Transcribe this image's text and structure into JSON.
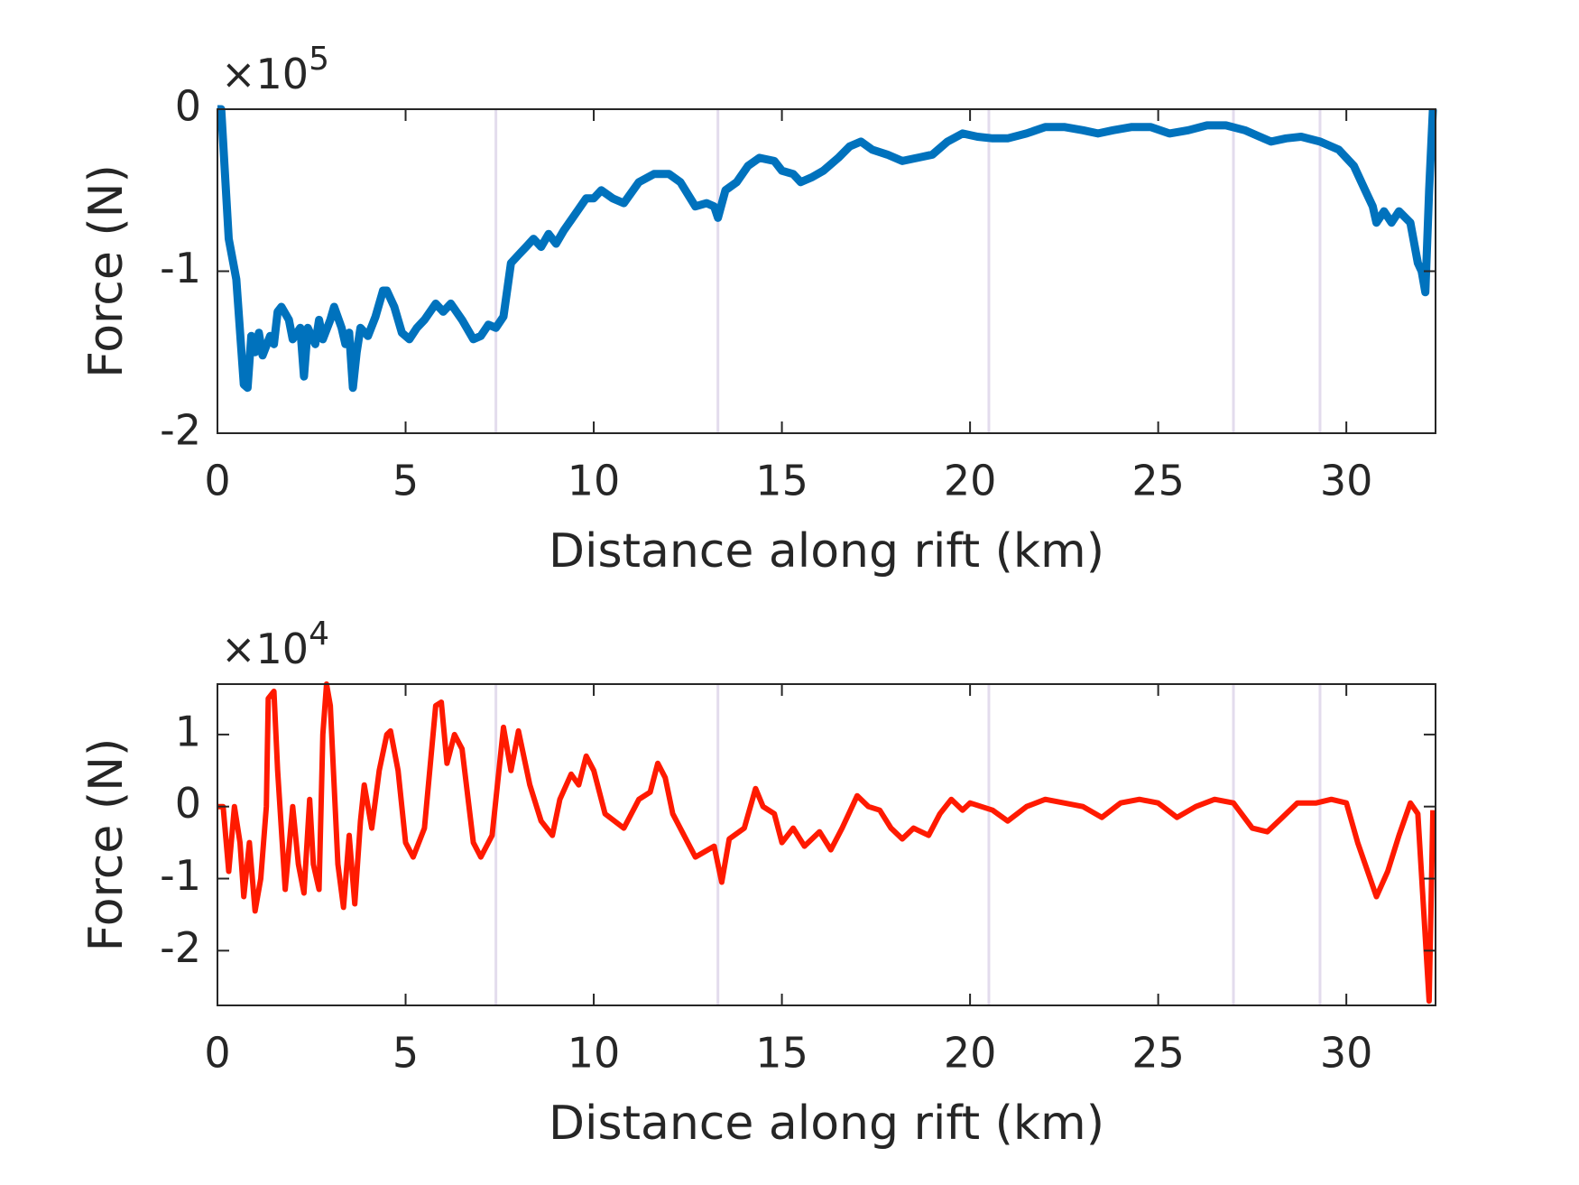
{
  "chart_data": [
    {
      "type": "line",
      "xlabel": "Distance along rift (km)",
      "ylabel": "Force (N)",
      "y_multiplier": "×10",
      "y_multiplier_exponent": "5",
      "xlim": [
        0,
        32.37
      ],
      "ylim": [
        -2,
        0
      ],
      "xticks": [
        0,
        5,
        10,
        15,
        20,
        25,
        30
      ],
      "yticks": [
        -2,
        -1,
        0
      ],
      "reference_lines": {
        "x": [
          7.4,
          13.3,
          20.5,
          27.0,
          29.3
        ],
        "color": "#e3dced"
      },
      "x": [
        0,
        0.1,
        0.3,
        0.5,
        0.7,
        0.8,
        0.9,
        1.0,
        1.1,
        1.2,
        1.4,
        1.5,
        1.6,
        1.7,
        1.9,
        2.0,
        2.2,
        2.3,
        2.4,
        2.6,
        2.7,
        2.8,
        3.0,
        3.1,
        3.3,
        3.4,
        3.5,
        3.6,
        3.7,
        3.8,
        4.0,
        4.2,
        4.4,
        4.5,
        4.7,
        4.9,
        5.1,
        5.3,
        5.5,
        5.8,
        6.0,
        6.2,
        6.5,
        6.8,
        7.0,
        7.2,
        7.4,
        7.6,
        7.8,
        8.0,
        8.2,
        8.4,
        8.6,
        8.8,
        9.0,
        9.2,
        9.5,
        9.8,
        10.0,
        10.2,
        10.5,
        10.8,
        11.2,
        11.6,
        12.0,
        12.3,
        12.7,
        13.0,
        13.2,
        13.3,
        13.5,
        13.8,
        14.1,
        14.4,
        14.8,
        15.0,
        15.3,
        15.5,
        15.8,
        16.1,
        16.5,
        16.8,
        17.1,
        17.4,
        17.8,
        18.2,
        18.6,
        19.0,
        19.4,
        19.8,
        20.2,
        20.6,
        21.0,
        21.5,
        22.0,
        22.5,
        23.0,
        23.4,
        23.8,
        24.3,
        24.8,
        25.3,
        25.8,
        26.3,
        26.8,
        27.3,
        27.7,
        28.0,
        28.4,
        28.8,
        29.3,
        29.8,
        30.2,
        30.5,
        30.7,
        30.8,
        31.0,
        31.2,
        31.4,
        31.7,
        31.9,
        32.0,
        32.1,
        32.2,
        32.3
      ],
      "series": [
        {
          "color": "#0072bd",
          "width": 9,
          "values": [
            0,
            0,
            -0.8,
            -1.05,
            -1.7,
            -1.72,
            -1.4,
            -1.5,
            -1.38,
            -1.52,
            -1.4,
            -1.45,
            -1.25,
            -1.22,
            -1.3,
            -1.42,
            -1.35,
            -1.65,
            -1.35,
            -1.45,
            -1.3,
            -1.42,
            -1.3,
            -1.22,
            -1.35,
            -1.45,
            -1.38,
            -1.72,
            -1.5,
            -1.35,
            -1.4,
            -1.28,
            -1.12,
            -1.12,
            -1.22,
            -1.38,
            -1.42,
            -1.35,
            -1.3,
            -1.2,
            -1.25,
            -1.2,
            -1.3,
            -1.42,
            -1.4,
            -1.33,
            -1.35,
            -1.28,
            -0.95,
            -0.9,
            -0.85,
            -0.8,
            -0.85,
            -0.77,
            -0.83,
            -0.75,
            -0.65,
            -0.55,
            -0.55,
            -0.5,
            -0.55,
            -0.58,
            -0.45,
            -0.4,
            -0.4,
            -0.45,
            -0.6,
            -0.58,
            -0.6,
            -0.67,
            -0.5,
            -0.45,
            -0.35,
            -0.3,
            -0.32,
            -0.38,
            -0.4,
            -0.45,
            -0.42,
            -0.38,
            -0.3,
            -0.23,
            -0.2,
            -0.25,
            -0.28,
            -0.32,
            -0.3,
            -0.28,
            -0.2,
            -0.15,
            -0.17,
            -0.18,
            -0.18,
            -0.15,
            -0.11,
            -0.11,
            -0.13,
            -0.15,
            -0.13,
            -0.11,
            -0.11,
            -0.15,
            -0.13,
            -0.1,
            -0.1,
            -0.13,
            -0.17,
            -0.2,
            -0.18,
            -0.17,
            -0.2,
            -0.25,
            -0.35,
            -0.5,
            -0.6,
            -0.7,
            -0.63,
            -0.7,
            -0.63,
            -0.7,
            -0.95,
            -1.0,
            -1.13,
            -0.5,
            0
          ]
        }
      ]
    },
    {
      "type": "line",
      "xlabel": "Distance along rift (km)",
      "ylabel": "Force (N)",
      "y_multiplier": "×10",
      "y_multiplier_exponent": "4",
      "xlim": [
        0,
        32.37
      ],
      "ylim": [
        -2.76,
        1.7
      ],
      "xticks": [
        0,
        5,
        10,
        15,
        20,
        25,
        30
      ],
      "yticks": [
        -2,
        -1,
        0,
        1
      ],
      "reference_lines": {
        "x": [
          7.4,
          13.3,
          20.5,
          27.0,
          29.3
        ],
        "color": "#e3dced"
      },
      "x": [
        0,
        0.15,
        0.3,
        0.45,
        0.6,
        0.7,
        0.85,
        1.0,
        1.15,
        1.3,
        1.35,
        1.5,
        1.6,
        1.8,
        2.0,
        2.15,
        2.3,
        2.45,
        2.55,
        2.7,
        2.8,
        2.9,
        3.0,
        3.2,
        3.35,
        3.5,
        3.65,
        3.8,
        3.9,
        4.1,
        4.3,
        4.5,
        4.6,
        4.8,
        5.0,
        5.2,
        5.5,
        5.8,
        5.95,
        6.1,
        6.3,
        6.5,
        6.8,
        7.0,
        7.3,
        7.6,
        7.8,
        8.0,
        8.3,
        8.6,
        8.9,
        9.1,
        9.4,
        9.6,
        9.8,
        10.0,
        10.3,
        10.8,
        11.2,
        11.5,
        11.7,
        11.9,
        12.1,
        12.5,
        12.7,
        13.2,
        13.4,
        13.6,
        14.0,
        14.3,
        14.5,
        14.8,
        15.0,
        15.3,
        15.6,
        16.0,
        16.3,
        16.6,
        17.0,
        17.3,
        17.6,
        17.9,
        18.2,
        18.5,
        18.9,
        19.2,
        19.5,
        19.8,
        20.0,
        20.3,
        20.6,
        21.0,
        21.5,
        22.0,
        22.5,
        23.0,
        23.5,
        24.0,
        24.5,
        25.0,
        25.5,
        26.0,
        26.5,
        27.0,
        27.5,
        27.9,
        28.3,
        28.7,
        29.2,
        29.6,
        30.0,
        30.3,
        30.8,
        31.1,
        31.4,
        31.7,
        31.9,
        32.2,
        32.3
      ],
      "series": [
        {
          "color": "#ff1a00",
          "width": 6,
          "values": [
            0,
            0,
            -0.9,
            0,
            -0.5,
            -1.25,
            -0.5,
            -1.45,
            -1.0,
            0,
            1.5,
            1.6,
            0.5,
            -1.15,
            0,
            -0.8,
            -1.2,
            0.1,
            -0.8,
            -1.15,
            1.0,
            1.7,
            1.4,
            -0.8,
            -1.4,
            -0.4,
            -1.35,
            -0.2,
            0.3,
            -0.3,
            0.5,
            1.0,
            1.05,
            0.5,
            -0.5,
            -0.7,
            -0.3,
            1.4,
            1.45,
            0.6,
            1.0,
            0.8,
            -0.5,
            -0.7,
            -0.4,
            1.1,
            0.5,
            1.05,
            0.3,
            -0.2,
            -0.4,
            0.1,
            0.45,
            0.3,
            0.7,
            0.5,
            -0.1,
            -0.3,
            0.1,
            0.2,
            0.6,
            0.4,
            -0.1,
            -0.5,
            -0.7,
            -0.55,
            -1.05,
            -0.45,
            -0.3,
            0.25,
            0.0,
            -0.1,
            -0.5,
            -0.3,
            -0.55,
            -0.35,
            -0.6,
            -0.3,
            0.15,
            0.0,
            -0.05,
            -0.3,
            -0.45,
            -0.3,
            -0.4,
            -0.1,
            0.1,
            -0.05,
            0.05,
            0.0,
            -0.05,
            -0.2,
            0.0,
            0.1,
            0.05,
            0.0,
            -0.15,
            0.05,
            0.1,
            0.05,
            -0.15,
            0.0,
            0.1,
            0.05,
            -0.3,
            -0.35,
            -0.15,
            0.05,
            0.05,
            0.1,
            0.05,
            -0.5,
            -1.25,
            -0.9,
            -0.4,
            0.05,
            -0.1,
            -2.7,
            -0.05
          ]
        }
      ]
    }
  ]
}
